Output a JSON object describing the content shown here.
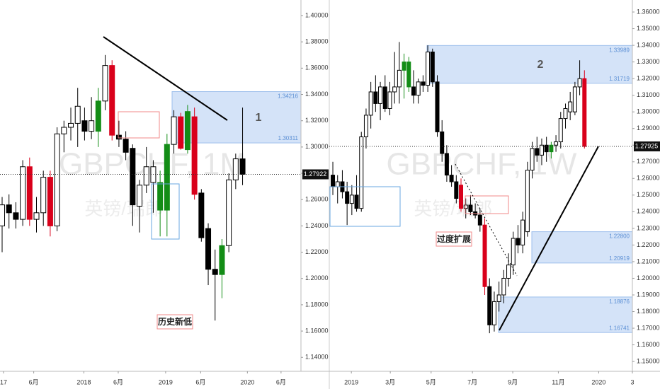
{
  "chart_data": [
    {
      "type": "candlestick",
      "watermark": "GBPCHF, 1M",
      "watermark_sub": "英镑/瑞郎",
      "annotations": [
        "1",
        "历史新低"
      ],
      "open": [
        1.24,
        1.256,
        1.25,
        1.245,
        1.285,
        1.245,
        1.25,
        1.277,
        1.24,
        1.31,
        1.315,
        1.318,
        1.32,
        1.312,
        1.312,
        1.335,
        1.362,
        1.309,
        1.306,
        1.299,
        1.255,
        1.271,
        1.273,
        1.273,
        1.252,
        1.302,
        1.323,
        1.298,
        1.323,
        1.265,
        1.238,
        1.207,
        1.203,
        1.225,
        1.275,
        1.291
      ],
      "high": [
        1.262,
        1.264,
        1.258,
        1.29,
        1.292,
        1.262,
        1.282,
        1.282,
        1.315,
        1.32,
        1.33,
        1.345,
        1.33,
        1.338,
        1.345,
        1.37,
        1.366,
        1.32,
        1.312,
        1.302,
        1.275,
        1.3,
        1.29,
        1.282,
        1.31,
        1.328,
        1.326,
        1.332,
        1.33,
        1.268,
        1.242,
        1.222,
        1.23,
        1.28,
        1.295,
        1.33
      ],
      "low": [
        1.22,
        1.238,
        1.238,
        1.24,
        1.24,
        1.235,
        1.24,
        1.232,
        1.236,
        1.296,
        1.305,
        1.3,
        1.305,
        1.306,
        1.3,
        1.328,
        1.305,
        1.3,
        1.29,
        1.24,
        1.235,
        1.265,
        1.25,
        1.232,
        1.232,
        1.295,
        1.298,
        1.295,
        1.26,
        1.228,
        1.195,
        1.168,
        1.185,
        1.22,
        1.268,
        1.271
      ],
      "close": [
        1.256,
        1.25,
        1.245,
        1.285,
        1.245,
        1.25,
        1.277,
        1.24,
        1.31,
        1.315,
        1.318,
        1.331,
        1.312,
        1.32,
        1.335,
        1.362,
        1.309,
        1.306,
        1.296,
        1.256,
        1.271,
        1.285,
        1.285,
        1.252,
        1.302,
        1.323,
        1.299,
        1.327,
        1.264,
        1.231,
        1.207,
        1.203,
        1.225,
        1.275,
        1.291,
        1.27922
      ],
      "candle_colors": [
        "#ffffff",
        "#000000",
        "#000000",
        "#ffffff",
        "#d9001b",
        "#ffffff",
        "#ffffff",
        "#d9001b",
        "#ffffff",
        "#ffffff",
        "#ffffff",
        "#ffffff",
        "#000000",
        "#ffffff",
        "#138d16",
        "#ffffff",
        "#d9001b",
        "#000000",
        "#000000",
        "#000000",
        "#ffffff",
        "#ffffff",
        "#ffffff",
        "#138d16",
        "#138d16",
        "#ffffff",
        "#d9001b",
        "#138d16",
        "#d9001b",
        "#000000",
        "#000000",
        "#000000",
        "#138d16",
        "#ffffff",
        "#ffffff",
        "#000000"
      ],
      "last_price": 1.27922,
      "zones": [
        {
          "top": 1.34216,
          "bottom": 1.30311
        }
      ],
      "xlim": [
        -0.31,
        43.5
      ],
      "xticks": [
        {
          "value": 0.2,
          "label": "17"
        },
        {
          "value": 4.6,
          "label": "6月"
        },
        {
          "value": 11.9,
          "label": "2018"
        },
        {
          "value": 16.9,
          "label": "6月"
        },
        {
          "value": 23.8,
          "label": "2019"
        },
        {
          "value": 28.9,
          "label": "6月"
        },
        {
          "value": 35.7,
          "label": "2020"
        },
        {
          "value": 40.6,
          "label": "6月"
        }
      ],
      "ylim": [
        1.12938,
        1.41184
      ],
      "yticks": [
        {
          "value": 1.14,
          "label": "1.14000"
        },
        {
          "value": 1.16,
          "label": "1.16000"
        },
        {
          "value": 1.18,
          "label": "1.18000"
        },
        {
          "value": 1.2,
          "label": "1.20000"
        },
        {
          "value": 1.22,
          "label": "1.22000"
        },
        {
          "value": 1.24,
          "label": "1.24000"
        },
        {
          "value": 1.26,
          "label": "1.26000"
        },
        {
          "value": 1.28,
          "label": "1.28000"
        },
        {
          "value": 1.3,
          "label": "1.30000"
        },
        {
          "value": 1.32,
          "label": "1.32000"
        },
        {
          "value": 1.34,
          "label": "1.34000"
        },
        {
          "value": 1.36,
          "label": "1.36000"
        },
        {
          "value": 1.38,
          "label": "1.38000"
        },
        {
          "value": 1.4,
          "label": "1.40000"
        }
      ]
    },
    {
      "type": "candlestick",
      "watermark": "GBPCHF, 1W",
      "watermark_sub": "英镑/瑞郎",
      "annotations": [
        "2",
        "过度扩展"
      ],
      "open": [
        1.262,
        1.255,
        1.258,
        1.252,
        1.245,
        1.25,
        1.242,
        1.285,
        1.298,
        1.312,
        1.305,
        1.315,
        1.302,
        1.312,
        1.315,
        1.325,
        1.33,
        1.315,
        1.31,
        1.318,
        1.316,
        1.336,
        1.318,
        1.288,
        1.275,
        1.262,
        1.258,
        1.256,
        1.242,
        1.244,
        1.24,
        1.238,
        1.232,
        1.195,
        1.172,
        1.186,
        1.19,
        1.2,
        1.208,
        1.224,
        1.22,
        1.228,
        1.265,
        1.278,
        1.274,
        1.28,
        1.276,
        1.28,
        1.282,
        1.296,
        1.3,
        1.3,
        1.315,
        1.32
      ],
      "high": [
        1.27,
        1.262,
        1.265,
        1.258,
        1.256,
        1.262,
        1.288,
        1.302,
        1.318,
        1.322,
        1.318,
        1.322,
        1.318,
        1.336,
        1.342,
        1.335,
        1.333,
        1.325,
        1.32,
        1.322,
        1.34,
        1.338,
        1.322,
        1.295,
        1.28,
        1.268,
        1.262,
        1.26,
        1.248,
        1.25,
        1.245,
        1.242,
        1.236,
        1.2,
        1.192,
        1.198,
        1.205,
        1.215,
        1.228,
        1.232,
        1.24,
        1.27,
        1.282,
        1.285,
        1.284,
        1.285,
        1.282,
        1.286,
        1.3,
        1.305,
        1.312,
        1.318,
        1.331,
        1.325
      ],
      "low": [
        1.25,
        1.245,
        1.248,
        1.232,
        1.238,
        1.24,
        1.24,
        1.278,
        1.29,
        1.3,
        1.295,
        1.3,
        1.298,
        1.305,
        1.305,
        1.308,
        1.312,
        1.305,
        1.305,
        1.312,
        1.312,
        1.315,
        1.285,
        1.27,
        1.258,
        1.255,
        1.245,
        1.24,
        1.236,
        1.238,
        1.236,
        1.228,
        1.19,
        1.167,
        1.168,
        1.18,
        1.185,
        1.195,
        1.202,
        1.215,
        1.215,
        1.225,
        1.26,
        1.27,
        1.268,
        1.27,
        1.272,
        1.276,
        1.278,
        1.29,
        1.295,
        1.298,
        1.31,
        1.278
      ],
      "close": [
        1.255,
        1.258,
        1.252,
        1.245,
        1.25,
        1.242,
        1.285,
        1.298,
        1.312,
        1.305,
        1.315,
        1.302,
        1.312,
        1.315,
        1.325,
        1.33,
        1.315,
        1.31,
        1.318,
        1.316,
        1.336,
        1.318,
        1.288,
        1.275,
        1.262,
        1.258,
        1.248,
        1.242,
        1.244,
        1.24,
        1.238,
        1.232,
        1.195,
        1.172,
        1.186,
        1.19,
        1.2,
        1.208,
        1.224,
        1.22,
        1.235,
        1.265,
        1.278,
        1.274,
        1.28,
        1.276,
        1.28,
        1.282,
        1.296,
        1.302,
        1.306,
        1.315,
        1.32,
        1.27925
      ],
      "candle_colors": [
        "#000000",
        "#ffffff",
        "#000000",
        "#000000",
        "#ffffff",
        "#000000",
        "#ffffff",
        "#ffffff",
        "#ffffff",
        "#000000",
        "#ffffff",
        "#000000",
        "#ffffff",
        "#ffffff",
        "#ffffff",
        "#138d16",
        "#138d16",
        "#000000",
        "#ffffff",
        "#000000",
        "#ffffff",
        "#000000",
        "#000000",
        "#000000",
        "#000000",
        "#000000",
        "#000000",
        "#d9001b",
        "#ffffff",
        "#000000",
        "#000000",
        "#000000",
        "#d9001b",
        "#000000",
        "#ffffff",
        "#ffffff",
        "#ffffff",
        "#ffffff",
        "#ffffff",
        "#000000",
        "#ffffff",
        "#ffffff",
        "#ffffff",
        "#000000",
        "#ffffff",
        "#000000",
        "#138d16",
        "#ffffff",
        "#ffffff",
        "#ffffff",
        "#ffffff",
        "#ffffff",
        "#ffffff",
        "#d9001b"
      ],
      "last_price": 1.27925,
      "zones": [
        {
          "top": 1.33989,
          "bottom": 1.31719
        },
        {
          "top": {
            "value": 1.228,
            "label": "1.22800"
          },
          "bottom": 1.20919
        },
        {
          "top": 1.18876,
          "bottom": 1.16741
        }
      ],
      "xlim": [
        -0.75,
        63.1
      ],
      "xticks": [
        {
          "value": 3.9,
          "label": "2019"
        },
        {
          "value": 12.1,
          "label": "3月"
        },
        {
          "value": 20.7,
          "label": "5月"
        },
        {
          "value": 29.4,
          "label": "7月"
        },
        {
          "value": 37.9,
          "label": "9月"
        },
        {
          "value": 47.5,
          "label": "11月"
        },
        {
          "value": 56.0,
          "label": "2020"
        },
        {
          "value": 63.1,
          "label": "3"
        }
      ],
      "ylim": [
        1.1441,
        1.36723
      ],
      "yticks": [
        {
          "value": 1.15,
          "label": "1.15000"
        },
        {
          "value": 1.16,
          "label": "1.16000"
        },
        {
          "value": 1.17,
          "label": "1.17000"
        },
        {
          "value": 1.18,
          "label": "1.18000"
        },
        {
          "value": 1.19,
          "label": "1.19000"
        },
        {
          "value": 1.2,
          "label": "1.20000"
        },
        {
          "value": 1.21,
          "label": "1.21000"
        },
        {
          "value": 1.22,
          "label": "1.22000"
        },
        {
          "value": 1.23,
          "label": "1.23000"
        },
        {
          "value": 1.24,
          "label": "1.24000"
        },
        {
          "value": 1.25,
          "label": "1.25000"
        },
        {
          "value": 1.26,
          "label": "1.26000"
        },
        {
          "value": 1.27,
          "label": "1.27000"
        },
        {
          "value": 1.28,
          "label": "1.28000"
        },
        {
          "value": 1.29,
          "label": "1.29000"
        },
        {
          "value": 1.3,
          "label": "1.30000"
        },
        {
          "value": 1.31,
          "label": "1.31000"
        },
        {
          "value": 1.32,
          "label": "1.32000"
        },
        {
          "value": 1.33,
          "label": "1.33000"
        },
        {
          "value": 1.34,
          "label": "1.34000"
        },
        {
          "value": 1.35,
          "label": "1.35000"
        },
        {
          "value": 1.36,
          "label": "1.36000"
        }
      ]
    }
  ]
}
